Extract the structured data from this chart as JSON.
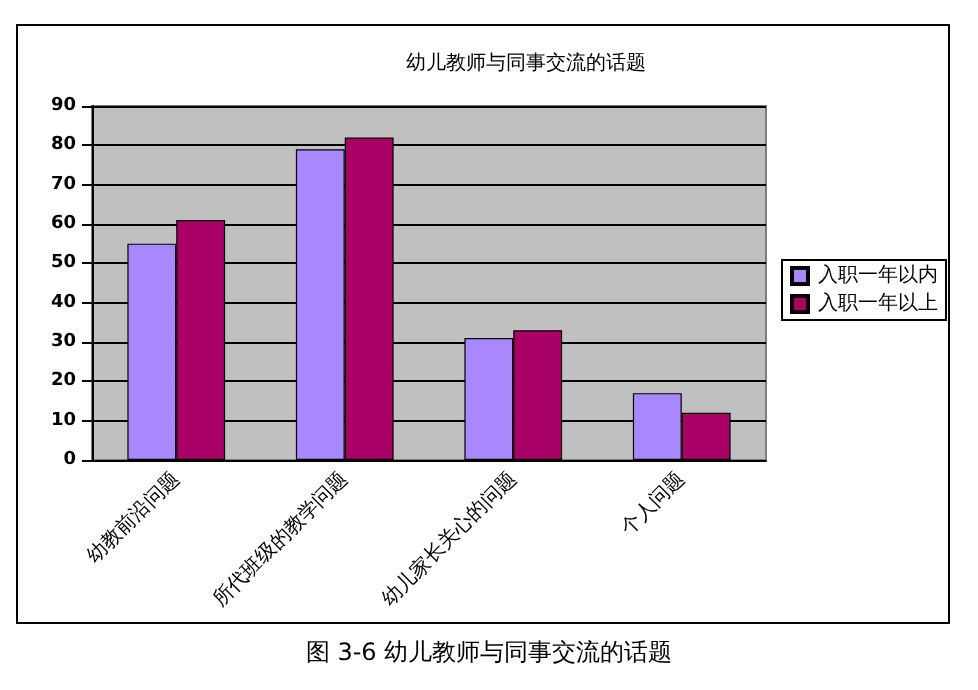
{
  "chart_data": {
    "type": "bar",
    "title": "幼儿教师与同事交流的话题",
    "categories": [
      "幼教前沿问题",
      "所代班级的教学问题",
      "幼儿家长关心的问题",
      "个人问题"
    ],
    "series": [
      {
        "name": "入职一年以内",
        "color": "#a987fe",
        "values": [
          55,
          79,
          31,
          17
        ]
      },
      {
        "name": "入职一年以上",
        "color": "#a80064",
        "values": [
          61,
          82,
          33,
          12
        ]
      }
    ],
    "ylim": [
      0,
      90
    ],
    "yticks": [
      0,
      10,
      20,
      30,
      40,
      50,
      60,
      70,
      80,
      90
    ],
    "grid": "y",
    "legend": "right",
    "annotations": [
      "图 3-6 幼儿教师与同事交流的话题"
    ]
  }
}
